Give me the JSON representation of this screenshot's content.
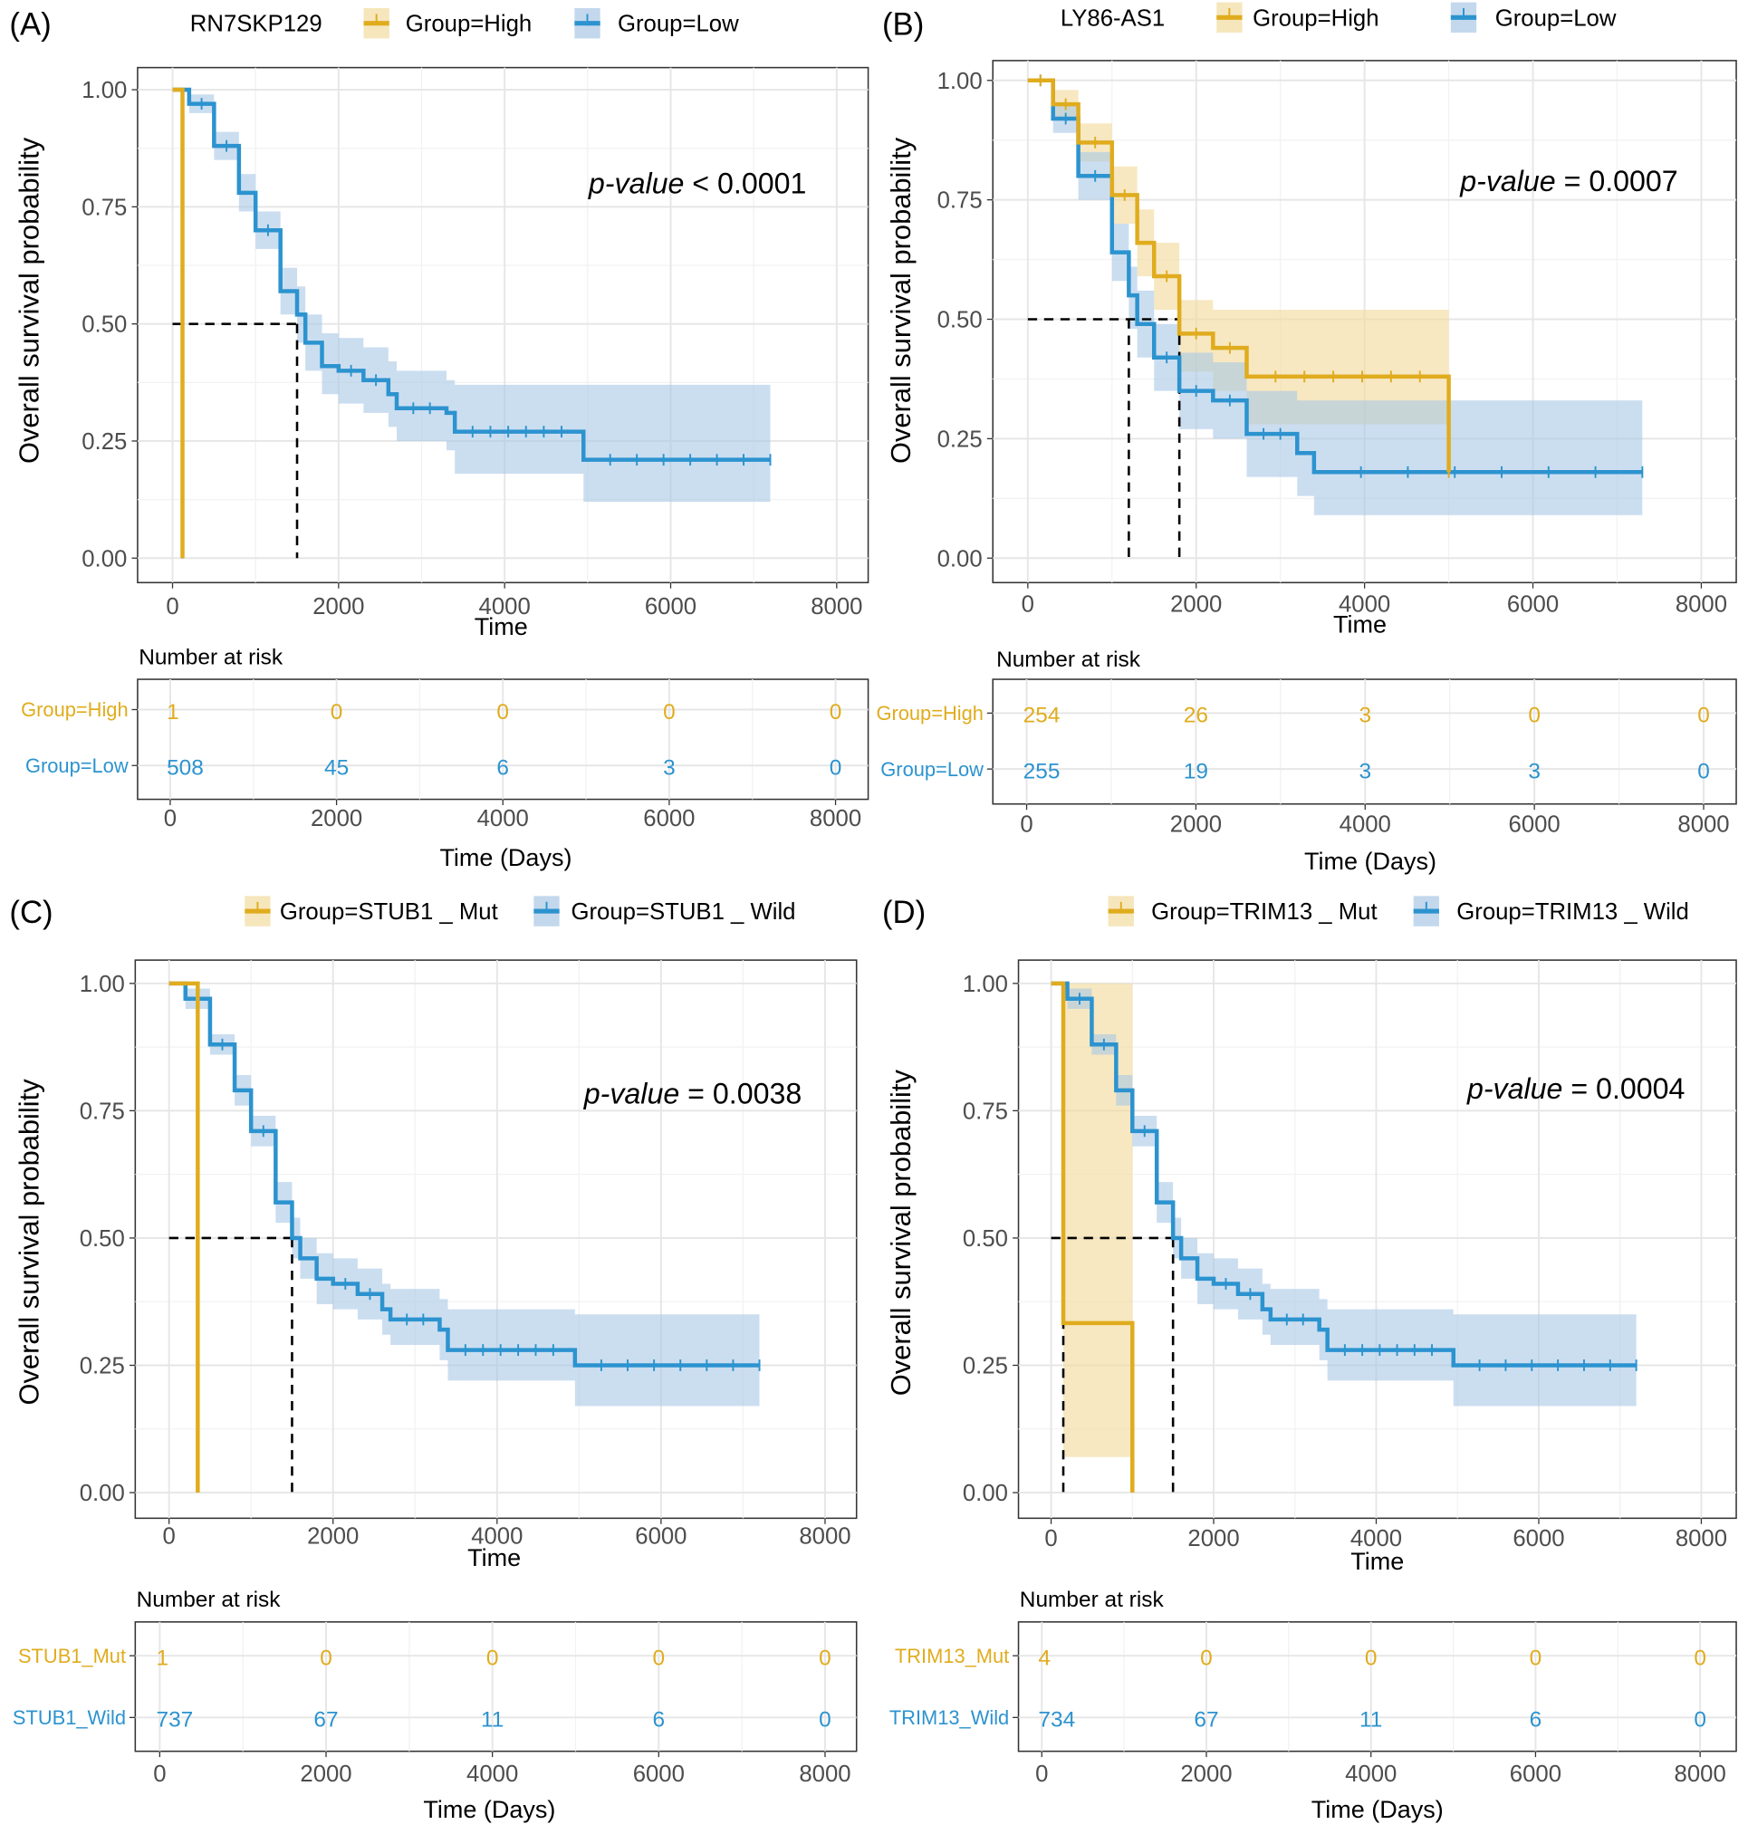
{
  "chart_data": [
    {
      "type": "line",
      "panel_label": "(A)",
      "legend_title": "RN7SKP129",
      "ylabel": "Overall survival probability",
      "xlabel": "Time",
      "yticks": [
        "0.00",
        "0.25",
        "0.50",
        "0.75",
        "1.00"
      ],
      "xticks": [
        "0",
        "2000",
        "4000",
        "6000",
        "8000"
      ],
      "xlim": [
        0,
        8000
      ],
      "ylim": [
        0,
        1
      ],
      "p_label": "p-value",
      "p_text": " < 0.0001",
      "median_times": [
        120,
        1500
      ],
      "risk_title": "Number at risk",
      "risk_xlabel": "Time (Days)",
      "series": [
        {
          "name": "Group=High",
          "risk_label": "Group=High",
          "color": "#E0AC1E",
          "risk": [
            "1",
            "0",
            "0",
            "0",
            "0"
          ],
          "curve": [
            [
              0,
              1
            ],
            [
              120,
              1
            ],
            [
              120,
              0
            ]
          ],
          "ci": []
        },
        {
          "name": "Group=Low",
          "risk_label": "Group=Low",
          "color": "#2C93CF",
          "risk": [
            "508",
            "45",
            "6",
            "3",
            "0"
          ],
          "curve": [
            [
              0,
              1
            ],
            [
              200,
              0.97
            ],
            [
              500,
              0.88
            ],
            [
              800,
              0.78
            ],
            [
              1000,
              0.7
            ],
            [
              1300,
              0.57
            ],
            [
              1500,
              0.52
            ],
            [
              1600,
              0.46
            ],
            [
              1800,
              0.41
            ],
            [
              2000,
              0.4
            ],
            [
              2300,
              0.38
            ],
            [
              2600,
              0.35
            ],
            [
              2700,
              0.32
            ],
            [
              3300,
              0.31
            ],
            [
              3400,
              0.27
            ],
            [
              4900,
              0.27
            ],
            [
              4950,
              0.21
            ],
            [
              7200,
              0.21
            ]
          ],
          "ci": [
            [
              0,
              1,
              1
            ],
            [
              200,
              0.95,
              0.99
            ],
            [
              500,
              0.85,
              0.91
            ],
            [
              800,
              0.74,
              0.82
            ],
            [
              1000,
              0.66,
              0.74
            ],
            [
              1300,
              0.52,
              0.62
            ],
            [
              1500,
              0.46,
              0.58
            ],
            [
              1600,
              0.4,
              0.52
            ],
            [
              1800,
              0.35,
              0.48
            ],
            [
              2000,
              0.33,
              0.47
            ],
            [
              2300,
              0.31,
              0.45
            ],
            [
              2600,
              0.28,
              0.42
            ],
            [
              2700,
              0.25,
              0.4
            ],
            [
              3300,
              0.23,
              0.38
            ],
            [
              3400,
              0.18,
              0.37
            ],
            [
              4950,
              0.12,
              0.37
            ],
            [
              7200,
              0.12,
              0.37
            ]
          ]
        }
      ]
    },
    {
      "type": "line",
      "panel_label": "(B)",
      "legend_title": "LY86-AS1",
      "ylabel": "Overall survival probability",
      "xlabel": "Time",
      "yticks": [
        "0.00",
        "0.25",
        "0.50",
        "0.75",
        "1.00"
      ],
      "xticks": [
        "0",
        "2000",
        "4000",
        "6000",
        "8000"
      ],
      "xlim": [
        0,
        8000
      ],
      "ylim": [
        0,
        1
      ],
      "p_label": "p-value",
      "p_text": " = 0.0007",
      "median_times": [
        1200,
        1800
      ],
      "risk_title": "Number at risk",
      "risk_xlabel": "Time (Days)",
      "series": [
        {
          "name": "Group=High",
          "risk_label": "Group=High",
          "color": "#E0AC1E",
          "risk": [
            "254",
            "26",
            "3",
            "0",
            "0"
          ],
          "curve": [
            [
              0,
              1
            ],
            [
              300,
              0.95
            ],
            [
              600,
              0.87
            ],
            [
              1000,
              0.76
            ],
            [
              1300,
              0.66
            ],
            [
              1500,
              0.59
            ],
            [
              1800,
              0.52
            ],
            [
              1800,
              0.47
            ],
            [
              2200,
              0.44
            ],
            [
              2600,
              0.38
            ],
            [
              5000,
              0.38
            ],
            [
              5000,
              0.18
            ]
          ],
          "ci": [
            [
              0,
              1,
              1
            ],
            [
              300,
              0.92,
              0.98
            ],
            [
              600,
              0.83,
              0.91
            ],
            [
              1000,
              0.7,
              0.82
            ],
            [
              1300,
              0.59,
              0.73
            ],
            [
              1500,
              0.52,
              0.66
            ],
            [
              1800,
              0.44,
              0.58
            ],
            [
              1800,
              0.39,
              0.54
            ],
            [
              2200,
              0.35,
              0.52
            ],
            [
              2600,
              0.28,
              0.52
            ],
            [
              5000,
              0.05,
              0.78
            ]
          ]
        },
        {
          "name": "Group=Low",
          "risk_label": "Group=Low",
          "color": "#2C93CF",
          "risk": [
            "255",
            "19",
            "3",
            "3",
            "0"
          ],
          "curve": [
            [
              0,
              1
            ],
            [
              300,
              0.92
            ],
            [
              600,
              0.8
            ],
            [
              1000,
              0.64
            ],
            [
              1200,
              0.55
            ],
            [
              1300,
              0.49
            ],
            [
              1500,
              0.42
            ],
            [
              1800,
              0.35
            ],
            [
              2200,
              0.33
            ],
            [
              2600,
              0.26
            ],
            [
              3200,
              0.22
            ],
            [
              3400,
              0.18
            ],
            [
              7300,
              0.18
            ]
          ],
          "ci": [
            [
              0,
              1,
              1
            ],
            [
              300,
              0.89,
              0.95
            ],
            [
              600,
              0.75,
              0.85
            ],
            [
              1000,
              0.58,
              0.7
            ],
            [
              1200,
              0.48,
              0.61
            ],
            [
              1300,
              0.42,
              0.56
            ],
            [
              1500,
              0.35,
              0.49
            ],
            [
              1800,
              0.27,
              0.43
            ],
            [
              2200,
              0.25,
              0.41
            ],
            [
              2600,
              0.17,
              0.35
            ],
            [
              3200,
              0.13,
              0.33
            ],
            [
              3400,
              0.09,
              0.33
            ],
            [
              7300,
              0.09,
              0.33
            ]
          ]
        }
      ]
    },
    {
      "type": "line",
      "panel_label": "(C)",
      "legend_title": "",
      "ylabel": "Overall survival probability",
      "xlabel": "Time",
      "yticks": [
        "0.00",
        "0.25",
        "0.50",
        "0.75",
        "1.00"
      ],
      "xticks": [
        "0",
        "2000",
        "4000",
        "6000",
        "8000"
      ],
      "xlim": [
        0,
        8000
      ],
      "ylim": [
        0,
        1
      ],
      "p_label": "p-value",
      "p_text": " = 0.0038",
      "median_times": [
        350,
        1500
      ],
      "risk_title": "Number at risk",
      "risk_xlabel": "Time (Days)",
      "series": [
        {
          "name": "Group=STUB1 _ Mut",
          "risk_label": "STUB1_Mut",
          "color": "#E0AC1E",
          "risk": [
            "1",
            "0",
            "0",
            "0",
            "0"
          ],
          "curve": [
            [
              0,
              1
            ],
            [
              350,
              1
            ],
            [
              350,
              0
            ]
          ],
          "ci": []
        },
        {
          "name": "Group=STUB1 _ Wild",
          "risk_label": "STUB1_Wild",
          "color": "#2C93CF",
          "risk": [
            "737",
            "67",
            "11",
            "6",
            "0"
          ],
          "curve": [
            [
              0,
              1
            ],
            [
              200,
              0.97
            ],
            [
              500,
              0.88
            ],
            [
              800,
              0.79
            ],
            [
              1000,
              0.71
            ],
            [
              1300,
              0.57
            ],
            [
              1500,
              0.5
            ],
            [
              1600,
              0.46
            ],
            [
              1800,
              0.42
            ],
            [
              2000,
              0.41
            ],
            [
              2300,
              0.39
            ],
            [
              2600,
              0.36
            ],
            [
              2700,
              0.34
            ],
            [
              3300,
              0.32
            ],
            [
              3400,
              0.28
            ],
            [
              4900,
              0.28
            ],
            [
              4950,
              0.25
            ],
            [
              7200,
              0.25
            ]
          ],
          "ci": [
            [
              0,
              1,
              1
            ],
            [
              200,
              0.95,
              0.99
            ],
            [
              500,
              0.86,
              0.9
            ],
            [
              800,
              0.76,
              0.82
            ],
            [
              1000,
              0.68,
              0.74
            ],
            [
              1300,
              0.53,
              0.61
            ],
            [
              1500,
              0.46,
              0.54
            ],
            [
              1600,
              0.42,
              0.5
            ],
            [
              1800,
              0.37,
              0.47
            ],
            [
              2000,
              0.36,
              0.46
            ],
            [
              2300,
              0.34,
              0.44
            ],
            [
              2600,
              0.31,
              0.41
            ],
            [
              2700,
              0.29,
              0.4
            ],
            [
              3300,
              0.26,
              0.38
            ],
            [
              3400,
              0.22,
              0.36
            ],
            [
              4950,
              0.17,
              0.35
            ],
            [
              7200,
              0.17,
              0.35
            ]
          ]
        }
      ]
    },
    {
      "type": "line",
      "panel_label": "(D)",
      "legend_title": "",
      "ylabel": "Overall survival probability",
      "xlabel": "Time",
      "yticks": [
        "0.00",
        "0.25",
        "0.50",
        "0.75",
        "1.00"
      ],
      "xticks": [
        "0",
        "2000",
        "4000",
        "6000",
        "8000"
      ],
      "xlim": [
        0,
        8000
      ],
      "ylim": [
        0,
        1
      ],
      "p_label": "p-value",
      "p_text": " = 0.0004",
      "median_times": [
        150,
        1500
      ],
      "risk_title": "Number at risk",
      "risk_xlabel": "Time (Days)",
      "series": [
        {
          "name": "Group=TRIM13 _ Mut",
          "risk_label": "TRIM13_Mut",
          "color": "#E0AC1E",
          "risk": [
            "4",
            "0",
            "0",
            "0",
            "0"
          ],
          "curve": [
            [
              0,
              1
            ],
            [
              150,
              1
            ],
            [
              150,
              0.333
            ],
            [
              1000,
              0.333
            ],
            [
              1000,
              0
            ]
          ],
          "ci": [
            [
              0,
              1,
              1
            ],
            [
              150,
              0.07,
              1
            ],
            [
              1000,
              0.07,
              1
            ]
          ]
        },
        {
          "name": "Group=TRIM13 _ Wild",
          "risk_label": "TRIM13_Wild",
          "color": "#2C93CF",
          "risk": [
            "734",
            "67",
            "11",
            "6",
            "0"
          ],
          "curve": [
            [
              0,
              1
            ],
            [
              200,
              0.97
            ],
            [
              500,
              0.88
            ],
            [
              800,
              0.79
            ],
            [
              1000,
              0.71
            ],
            [
              1300,
              0.57
            ],
            [
              1500,
              0.5
            ],
            [
              1600,
              0.46
            ],
            [
              1800,
              0.42
            ],
            [
              2000,
              0.41
            ],
            [
              2300,
              0.39
            ],
            [
              2600,
              0.36
            ],
            [
              2700,
              0.34
            ],
            [
              3300,
              0.32
            ],
            [
              3400,
              0.28
            ],
            [
              4900,
              0.28
            ],
            [
              4950,
              0.25
            ],
            [
              7200,
              0.25
            ]
          ],
          "ci": [
            [
              0,
              1,
              1
            ],
            [
              200,
              0.95,
              0.99
            ],
            [
              500,
              0.86,
              0.9
            ],
            [
              800,
              0.76,
              0.82
            ],
            [
              1000,
              0.68,
              0.74
            ],
            [
              1300,
              0.53,
              0.61
            ],
            [
              1500,
              0.46,
              0.54
            ],
            [
              1600,
              0.42,
              0.5
            ],
            [
              1800,
              0.37,
              0.47
            ],
            [
              2000,
              0.36,
              0.46
            ],
            [
              2300,
              0.34,
              0.44
            ],
            [
              2600,
              0.31,
              0.41
            ],
            [
              2700,
              0.29,
              0.4
            ],
            [
              3300,
              0.26,
              0.38
            ],
            [
              3400,
              0.22,
              0.36
            ],
            [
              4950,
              0.17,
              0.35
            ],
            [
              7200,
              0.17,
              0.35
            ]
          ]
        }
      ]
    }
  ]
}
